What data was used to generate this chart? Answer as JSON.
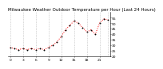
{
  "title": "Milwaukee Weather Outdoor Temperature per Hour (Last 24 Hours)",
  "hours": [
    0,
    1,
    2,
    3,
    4,
    5,
    6,
    7,
    8,
    9,
    10,
    11,
    12,
    13,
    14,
    15,
    16,
    17,
    18,
    19,
    20,
    21,
    22,
    23
  ],
  "temps": [
    28,
    27,
    26,
    27,
    26,
    27,
    26,
    27,
    26,
    28,
    30,
    33,
    38,
    44,
    48,
    52,
    50,
    46,
    42,
    44,
    40,
    50,
    54,
    53
  ],
  "line_color": "#ff0000",
  "marker_color": "#000000",
  "bg_color": "#ffffff",
  "grid_color": "#999999",
  "grid_positions": [
    0,
    3,
    6,
    9,
    12,
    15,
    18,
    21,
    23
  ],
  "ylim_min": 20,
  "ylim_max": 60,
  "yticks": [
    20,
    25,
    30,
    35,
    40,
    45,
    50,
    55
  ],
  "xticks": [
    0,
    3,
    6,
    9,
    12,
    15,
    18,
    21
  ],
  "title_fontsize": 4.0,
  "tick_fontsize": 3.2
}
